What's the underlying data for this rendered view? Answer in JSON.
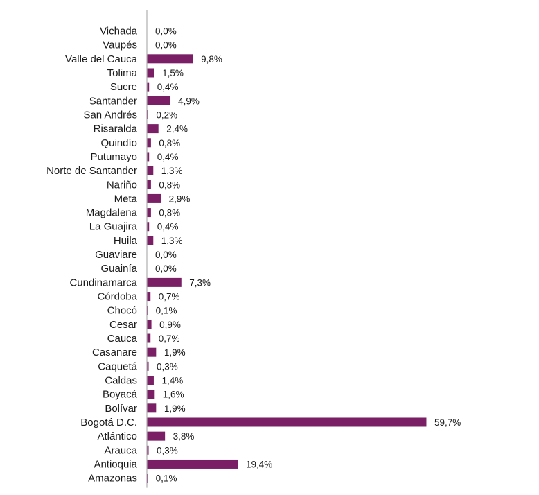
{
  "chart_data": {
    "type": "bar",
    "orientation": "horizontal",
    "categories": [
      "Vichada",
      "Vaupés",
      "Valle del Cauca",
      "Tolima",
      "Sucre",
      "Santander",
      "San Andrés",
      "Risaralda",
      "Quindío",
      "Putumayo",
      "Norte de Santander",
      "Nariño",
      "Meta",
      "Magdalena",
      "La Guajira",
      "Huila",
      "Guaviare",
      "Guainía",
      "Cundinamarca",
      "Córdoba",
      "Chocó",
      "Cesar",
      "Cauca",
      "Casanare",
      "Caquetá",
      "Caldas",
      "Boyacá",
      "Bolívar",
      "Bogotá D.C.",
      "Atlántico",
      "Arauca",
      "Antioquia",
      "Amazonas"
    ],
    "values": [
      0.0,
      0.0,
      9.8,
      1.5,
      0.4,
      4.9,
      0.2,
      2.4,
      0.8,
      0.4,
      1.3,
      0.8,
      2.9,
      0.8,
      0.4,
      1.3,
      0.0,
      0.0,
      7.3,
      0.7,
      0.1,
      0.9,
      0.7,
      1.9,
      0.3,
      1.4,
      1.6,
      1.9,
      59.7,
      3.8,
      0.3,
      19.4,
      0.1
    ],
    "value_labels": [
      "0,0%",
      "0,0%",
      "9,8%",
      "1,5%",
      "0,4%",
      "4,9%",
      "0,2%",
      "2,4%",
      "0,8%",
      "0,4%",
      "1,3%",
      "0,8%",
      "2,9%",
      "0,8%",
      "0,4%",
      "1,3%",
      "0,0%",
      "0,0%",
      "7,3%",
      "0,7%",
      "0,1%",
      "0,9%",
      "0,7%",
      "1,9%",
      "0,3%",
      "1,4%",
      "1,6%",
      "1,9%",
      "59,7%",
      "3,8%",
      "0,3%",
      "19,4%",
      "0,1%"
    ],
    "unit": "%",
    "xlim": [
      0,
      60
    ],
    "grid": false,
    "legend": "none",
    "bar_color": "#7a1f66",
    "axis_color": "#bfbfbf",
    "title": "",
    "xlabel": "",
    "ylabel": ""
  }
}
